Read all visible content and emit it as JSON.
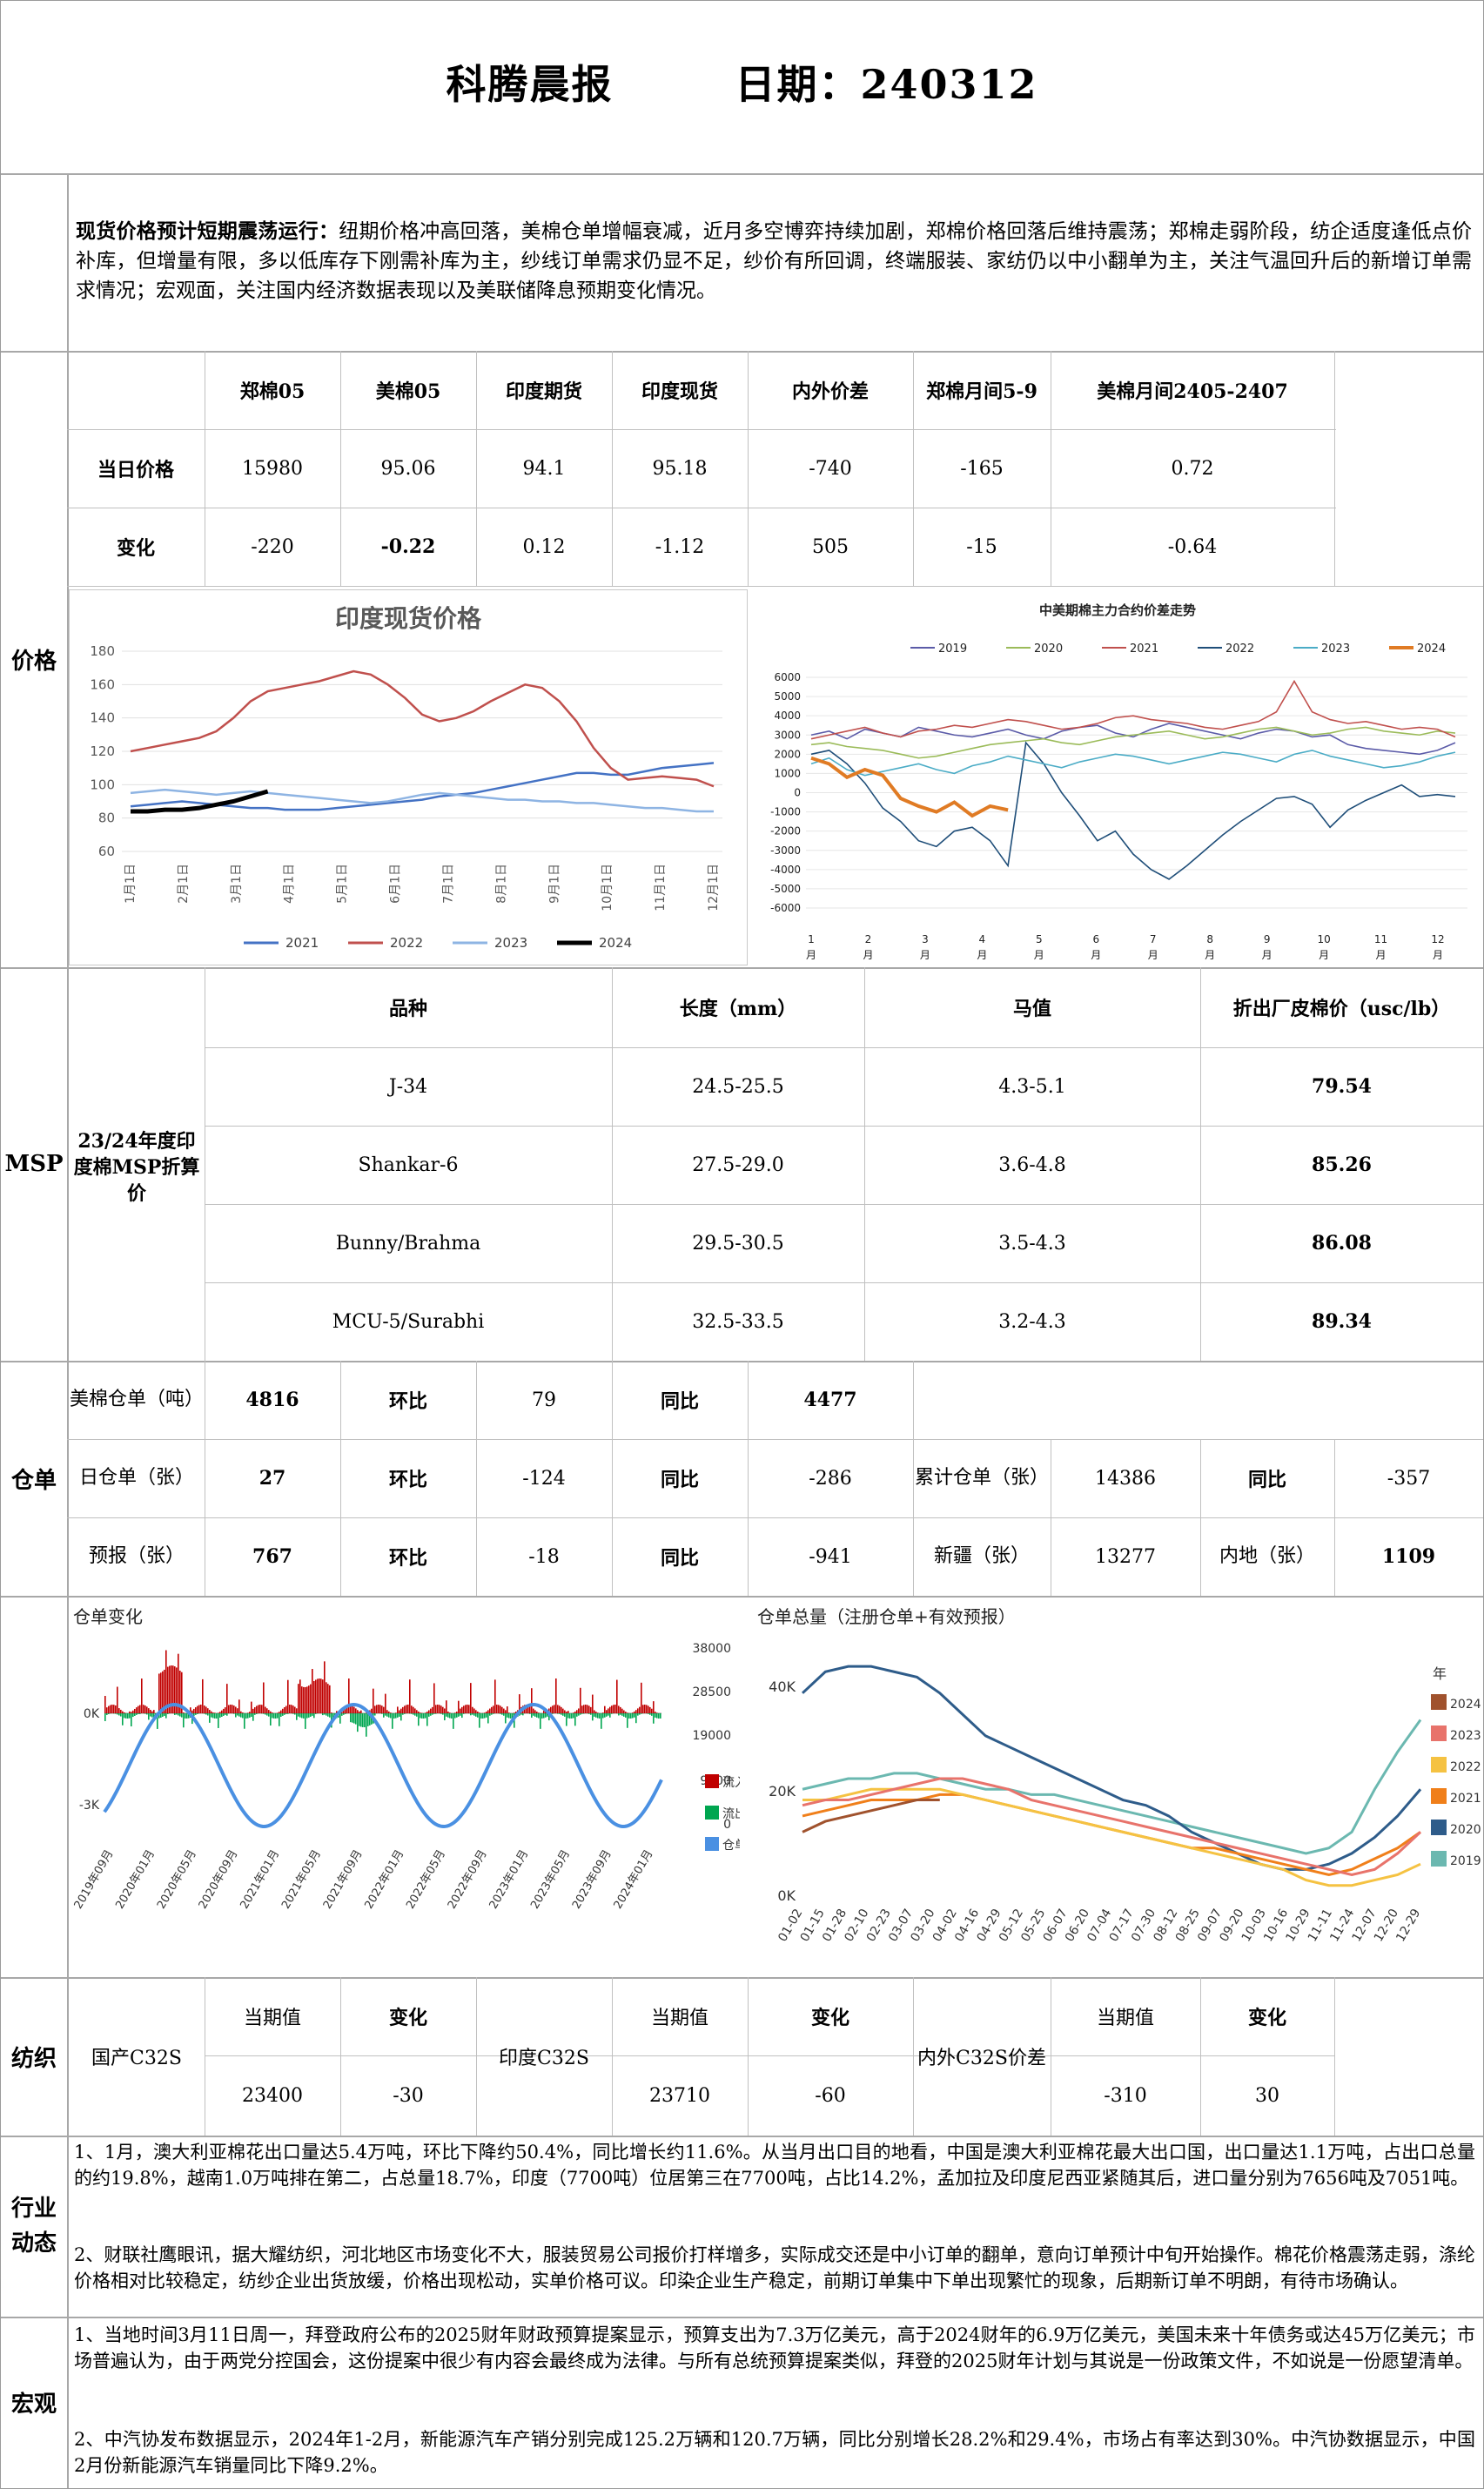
{
  "header": {
    "title": "科腾晨报",
    "date_label": "日期：",
    "date_value": "240312"
  },
  "summary": {
    "bold_lead": "现货价格预计短期震荡运行：",
    "text": "纽期价格冲高回落，美棉仓单增幅衰减，近月多空博弈持续加剧，郑棉价格回落后维持震荡；郑棉走弱阶段，纺企适度逢低点价补库，但增量有限，多以低库存下刚需补库为主，纱线订单需求仍显不足，纱价有所回调，终端服装、家纺仍以中小翻单为主，关注气温回升后的新增订单需求情况；宏观面，关注国内经济数据表现以及美联储降息预期变化情况。"
  },
  "price": {
    "section_label": "价格",
    "headers": [
      "郑棉05",
      "美棉05",
      "印度期货",
      "印度现货",
      "内外价差",
      "郑棉月间5-9",
      "美棉月间2405-2407"
    ],
    "row_current_label": "当日价格",
    "row_current": [
      "15980",
      "95.06",
      "94.1",
      "95.18",
      "-740",
      "-165",
      "0.72"
    ],
    "row_change_label": "变化",
    "row_change": [
      "-220",
      "-0.22",
      "0.12",
      "-1.12",
      "505",
      "-15",
      "-0.64"
    ]
  },
  "chart_india": {
    "type": "line",
    "title": "印度现货价格",
    "x_ticks": [
      "1月1日",
      "2月1日",
      "3月1日",
      "4月1日",
      "5月1日",
      "6月1日",
      "7月1日",
      "8月1日",
      "9月1日",
      "10月1日",
      "11月1日",
      "12月1日"
    ],
    "ylim": [
      60,
      180
    ],
    "y_ticks": [
      "180",
      "160",
      "140",
      "120",
      "100",
      "80",
      "60"
    ],
    "legend": [
      "2021",
      "2022",
      "2023",
      "2024"
    ],
    "colors": {
      "2021": "#4472c4",
      "2022": "#c0504d",
      "2023": "#8eb4e3",
      "2024": "#000000"
    },
    "series": [
      {
        "name": "2021",
        "values": [
          87,
          88,
          89,
          90,
          89,
          88,
          87,
          86,
          86,
          85,
          85,
          85,
          86,
          87,
          88,
          89,
          90,
          91,
          93,
          94,
          95,
          97,
          99,
          101,
          103,
          105,
          107,
          107,
          106,
          106,
          108,
          110,
          111,
          112,
          113
        ]
      },
      {
        "name": "2022",
        "values": [
          120,
          122,
          124,
          126,
          128,
          132,
          140,
          150,
          156,
          158,
          160,
          162,
          165,
          168,
          166,
          160,
          152,
          142,
          138,
          140,
          144,
          150,
          155,
          160,
          158,
          150,
          138,
          122,
          110,
          103,
          104,
          105,
          104,
          103,
          99
        ]
      },
      {
        "name": "2023",
        "values": [
          95,
          96,
          97,
          96,
          95,
          94,
          95,
          96,
          95,
          94,
          93,
          92,
          91,
          90,
          89,
          90,
          92,
          94,
          95,
          94,
          93,
          92,
          91,
          91,
          90,
          90,
          89,
          89,
          88,
          87,
          86,
          86,
          85,
          84,
          84
        ]
      },
      {
        "name": "2024",
        "values": [
          84,
          84,
          85,
          85,
          86,
          88,
          90,
          93,
          96
        ]
      }
    ]
  },
  "chart_spread": {
    "type": "line",
    "title": "中美期棉主力合约价差走势",
    "legend": [
      "2019",
      "2020",
      "2021",
      "2022",
      "2023",
      "2024"
    ],
    "colors": {
      "2019": "#5b5ba8",
      "2020": "#9bbb59",
      "2021": "#c0504d",
      "2022": "#1f4e79",
      "2023": "#4bacc6",
      "2024": "#e07b24"
    },
    "ylim": [
      -6000,
      6000
    ],
    "y_ticks": [
      "6000",
      "5000",
      "4000",
      "3000",
      "2000",
      "1000",
      "0",
      "-1000",
      "-2000",
      "-3000",
      "-4000",
      "-5000",
      "-6000"
    ],
    "x_ticks": [
      "1\n月",
      "2\n月",
      "3\n月",
      "4\n月",
      "5\n月",
      "6\n月",
      "7\n月",
      "8\n月",
      "9\n月",
      "10\n月",
      "11\n月",
      "12\n月"
    ],
    "series": [
      {
        "name": "2019",
        "values": [
          3000,
          3200,
          2800,
          3300,
          3100,
          2900,
          3400,
          3200,
          3000,
          2900,
          3100,
          3300,
          3000,
          2800,
          3200,
          3400,
          3500,
          3100,
          2900,
          3300,
          3600,
          3400,
          3200,
          3000,
          2800,
          3100,
          3300,
          3200,
          2900,
          3000,
          2500,
          2300,
          2200,
          2100,
          2000,
          2200,
          2600
        ]
      },
      {
        "name": "2020",
        "values": [
          2500,
          2600,
          2400,
          2300,
          2200,
          2000,
          1800,
          1900,
          2100,
          2300,
          2500,
          2600,
          2700,
          2800,
          2600,
          2500,
          2700,
          2900,
          3000,
          3100,
          3200,
          3000,
          2800,
          2900,
          3100,
          3300,
          3400,
          3200,
          3000,
          3100,
          3300,
          3400,
          3200,
          3100,
          3000,
          3200,
          3100
        ]
      },
      {
        "name": "2021",
        "values": [
          2800,
          3000,
          3200,
          3400,
          3100,
          2900,
          3200,
          3300,
          3500,
          3400,
          3600,
          3800,
          3700,
          3500,
          3300,
          3400,
          3600,
          3900,
          4000,
          3800,
          3700,
          3600,
          3400,
          3300,
          3500,
          3700,
          4200,
          5800,
          4200,
          3800,
          3600,
          3700,
          3500,
          3300,
          3400,
          3300,
          2900
        ]
      },
      {
        "name": "2022",
        "values": [
          2000,
          2200,
          1500,
          500,
          -800,
          -1500,
          -2500,
          -2800,
          -2000,
          -1800,
          -2500,
          -3800,
          2600,
          1500,
          0,
          -1200,
          -2500,
          -2000,
          -3200,
          -4000,
          -4500,
          -3800,
          -3000,
          -2200,
          -1500,
          -900,
          -300,
          -200,
          -600,
          -1800,
          -900,
          -400,
          0,
          400,
          -200,
          -100,
          -200
        ]
      },
      {
        "name": "2023",
        "values": [
          1500,
          1800,
          1200,
          900,
          1100,
          1300,
          1500,
          1200,
          1000,
          1400,
          1600,
          1900,
          1700,
          1500,
          1300,
          1600,
          1800,
          2000,
          1900,
          1700,
          1500,
          1700,
          1900,
          2100,
          2000,
          1800,
          1600,
          2000,
          2200,
          1900,
          1700,
          1500,
          1300,
          1400,
          1600,
          1900,
          2100
        ]
      },
      {
        "name": "2024",
        "values": [
          1800,
          1500,
          800,
          1200,
          900,
          -300,
          -700,
          -1000,
          -500,
          -1200,
          -700,
          -900
        ]
      }
    ]
  },
  "msp": {
    "section_label": "MSP",
    "row_label": "23/24年度印度棉MSP折算价",
    "headers": [
      "品种",
      "长度（mm）",
      "马值",
      "折出厂皮棉价（usc/lb）"
    ],
    "rows": [
      [
        "J-34",
        "24.5-25.5",
        "4.3-5.1",
        "79.54"
      ],
      [
        "Shankar-6",
        "27.5-29.0",
        "3.6-4.8",
        "85.26"
      ],
      [
        "Bunny/Brahma",
        "29.5-30.5",
        "3.5-4.3",
        "86.08"
      ],
      [
        "MCU-5/Surabhi",
        "32.5-33.5",
        "3.2-4.3",
        "89.34"
      ]
    ]
  },
  "warehouse": {
    "section_label": "仓单",
    "r1": {
      "label": "美棉仓单（吨）",
      "value": "4816",
      "hb_label": "环比",
      "hb": "79",
      "tb_label": "同比",
      "tb": "4477"
    },
    "r2": {
      "label": "日仓单（张）",
      "value": "27",
      "hb_label": "环比",
      "hb": "-124",
      "tb_label": "同比",
      "tb": "-286",
      "lj_label": "累计仓单（张）",
      "lj": "14386",
      "lj_tb_label": "同比",
      "lj_tb": "-357"
    },
    "r3": {
      "label": "预报（张）",
      "value": "767",
      "hb_label": "环比",
      "hb": "-18",
      "tb_label": "同比",
      "tb": "-941",
      "xj_label": "新疆（张）",
      "xj": "13277",
      "nd_label": "内地（张）",
      "nd": "1109"
    }
  },
  "chart_receipt_change": {
    "type": "bar",
    "title": "仓单变化",
    "left_ticks": [
      "0K",
      "-3K"
    ],
    "right_ticks": [
      "38000",
      "28500",
      "19000",
      "9500",
      "0"
    ],
    "legend": [
      "流入",
      "流出",
      "仓单"
    ],
    "colors": {
      "流入": "#c00000",
      "流出": "#00a650",
      "仓单": "#4a90e2"
    },
    "x_labels": [
      "2019年09月",
      "2020年01月",
      "2020年05月",
      "2020年09月",
      "2021年01月",
      "2021年05月",
      "2021年09月",
      "2022年01月",
      "2022年05月",
      "2022年09月",
      "2023年01月",
      "2023年05月",
      "2023年09月",
      "2024年01月"
    ]
  },
  "chart_receipt_total": {
    "type": "line",
    "title": "仓单总量（注册仓单+有效预报）",
    "y_ticks": [
      "40K",
      "20K",
      "0K"
    ],
    "legend_title": "年",
    "legend": [
      "2024",
      "2023",
      "2022",
      "2021",
      "2020",
      "2019"
    ],
    "colors": {
      "2024": "#a0522d",
      "2023": "#e8736b",
      "2022": "#f5c242",
      "2021": "#f07f1a",
      "2020": "#2e5c8a",
      "2019": "#6bb8b0"
    },
    "x_labels": [
      "01-02",
      "01-15",
      "01-28",
      "02-10",
      "02-23",
      "03-07",
      "03-20",
      "04-02",
      "04-16",
      "04-29",
      "05-12",
      "05-25",
      "06-07",
      "06-20",
      "07-04",
      "07-17",
      "07-30",
      "08-12",
      "08-25",
      "09-07",
      "09-20",
      "10-03",
      "10-16",
      "10-29",
      "11-11",
      "11-24",
      "12-07",
      "12-20",
      "12-29"
    ]
  },
  "textile": {
    "section_label": "纺织",
    "blocks": [
      {
        "name": "国产C32S",
        "cur_label": "当期值",
        "chg_label": "变化",
        "cur": "23400",
        "chg": "-30"
      },
      {
        "name": "印度C32S",
        "cur_label": "当期值",
        "chg_label": "变化",
        "cur": "23710",
        "chg": "-60"
      },
      {
        "name": "内外C32S价差",
        "cur_label": "当期值",
        "chg_label": "变化",
        "cur": "-310",
        "chg": "30"
      }
    ]
  },
  "industry": {
    "section_label": "行业动态",
    "p1": "1、1月，澳大利亚棉花出口量达5.4万吨，环比下降约50.4%，同比增长约11.6%。从当月出口目的地看，中国是澳大利亚棉花最大出口国，出口量达1.1万吨，占出口总量的约19.8%，越南1.0万吨排在第二，占总量18.7%，印度（7700吨）位居第三在7700吨，占比14.2%，孟加拉及印度尼西亚紧随其后，进口量分别为7656吨及7051吨。",
    "p2": "2、财联社鹰眼讯，据大耀纺织，河北地区市场变化不大，服装贸易公司报价打样增多，实际成交还是中小订单的翻单，意向订单预计中旬开始操作。棉花价格震荡走弱，涤纶价格相对比较稳定，纺纱企业出货放缓，价格出现松动，实单价格可议。印染企业生产稳定，前期订单集中下单出现繁忙的现象，后期新订单不明朗，有待市场确认。"
  },
  "macro": {
    "section_label": "宏观",
    "p1": "1、当地时间3月11日周一，拜登政府公布的2025财年财政预算提案显示，预算支出为7.3万亿美元，高于2024财年的6.9万亿美元，美国未来十年债务或达45万亿美元；市场普遍认为，由于两党分控国会，这份提案中很少有内容会最终成为法律。与所有总统预算提案类似，拜登的2025财年计划与其说是一份政策文件，不如说是一份愿望清单。",
    "p2": "2、中汽协发布数据显示，2024年1-2月，新能源汽车产销分别完成125.2万辆和120.7万辆，同比分别增长28.2%和29.4%，市场占有率达到30%。中汽协数据显示，中国2月份新能源汽车销量同比下降9.2%。"
  }
}
